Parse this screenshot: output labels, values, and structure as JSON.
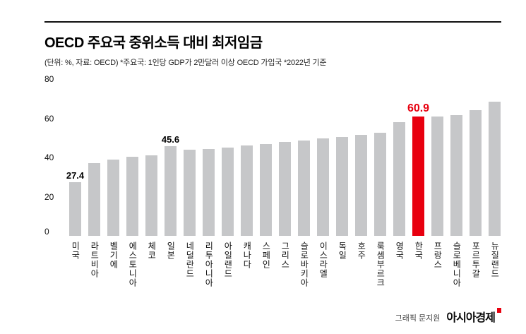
{
  "header": {
    "title": "OECD 주요국 중위소득 대비 최저임금",
    "subtitle": "(단위: %, 자료: OECD)  *주요국: 1인당 GDP가 2만달러 이상 OECD 가입국  *2022년 기준"
  },
  "chart_data": {
    "type": "bar",
    "title": "OECD 주요국 중위소득 대비 최저임금",
    "unit": "%",
    "source": "OECD",
    "basis_year": "2022",
    "categories": [
      "미국",
      "라트비아",
      "벨기에",
      "에스토니아",
      "체코",
      "일본",
      "네덜란드",
      "리투아니아",
      "아일랜드",
      "캐나다",
      "스페인",
      "그리스",
      "슬로바키아",
      "이스라엘",
      "독일",
      "호주",
      "룩셈부르크",
      "영국",
      "한국",
      "프랑스",
      "슬로베니아",
      "포르투갈",
      "뉴질랜드"
    ],
    "values": [
      27.4,
      37.0,
      38.8,
      40.2,
      41.0,
      45.6,
      44.0,
      44.5,
      45.0,
      46.2,
      47.0,
      48.0,
      48.8,
      49.8,
      50.6,
      51.4,
      52.5,
      58.0,
      60.9,
      61.0,
      61.5,
      64.0,
      68.5
    ],
    "annotations": [
      {
        "index": 0,
        "text": "27.4"
      },
      {
        "index": 5,
        "text": "45.6"
      },
      {
        "index": 18,
        "text": "60.9"
      }
    ],
    "highlight_index": 18,
    "highlight_category": "한국",
    "ylim": [
      0,
      80
    ],
    "yticks": [
      0,
      20,
      40,
      60,
      80
    ],
    "bar_color": "#c6c7c9",
    "highlight_color": "#e8000f",
    "grid": false,
    "legend": "none"
  },
  "footer": {
    "credit": "그래픽 문지원",
    "logo": "아시아경제"
  }
}
